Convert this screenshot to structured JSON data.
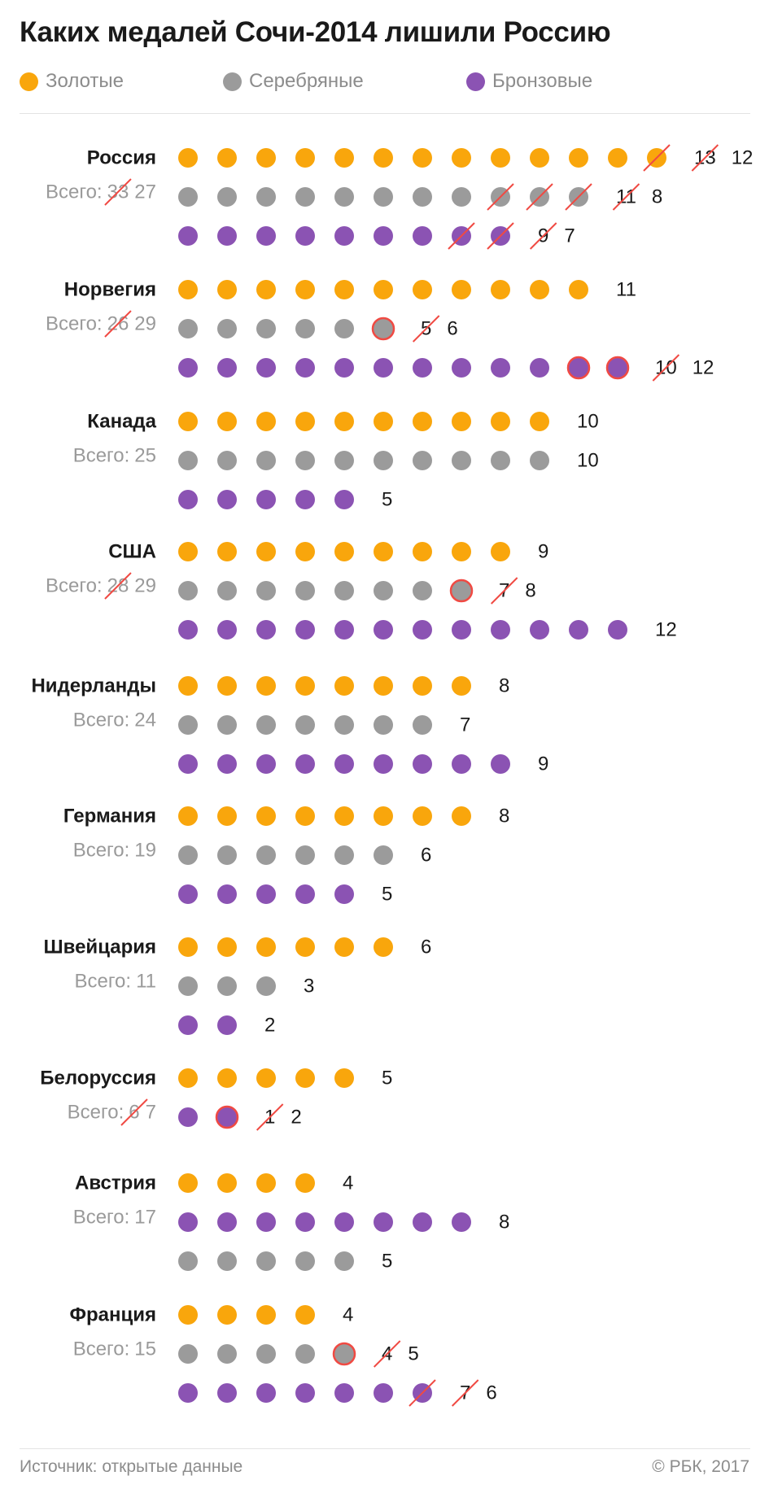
{
  "colors": {
    "gold": "#f9a60c",
    "silver": "#9b9b9b",
    "bronze": "#8b53b3",
    "strike": "#f04a43",
    "ring": "#f04a43"
  },
  "chart_data": {
    "type": "dot-matrix",
    "title": "Каких медалей Сочи-2014 лишили Россию",
    "legend": [
      {
        "key": "gold",
        "label": "Золотые"
      },
      {
        "key": "silver",
        "label": "Серебряные"
      },
      {
        "key": "bronze",
        "label": "Бронзовые"
      }
    ],
    "total_label": "Всего:",
    "countries": [
      {
        "name": "Россия",
        "total_before": 33,
        "total_after": 27,
        "rows": [
          {
            "type": "gold",
            "before": 13,
            "after": 12,
            "added": 0
          },
          {
            "type": "silver",
            "before": 11,
            "after": 8,
            "added": 0
          },
          {
            "type": "bronze",
            "before": 9,
            "after": 7,
            "added": 0
          }
        ]
      },
      {
        "name": "Норвегия",
        "total_before": 26,
        "total_after": 29,
        "rows": [
          {
            "type": "gold",
            "before": 11,
            "after": 11,
            "added": 0
          },
          {
            "type": "silver",
            "before": 5,
            "after": 6,
            "added": 1
          },
          {
            "type": "bronze",
            "before": 10,
            "after": 12,
            "added": 2
          }
        ]
      },
      {
        "name": "Канада",
        "total_before": 25,
        "total_after": 25,
        "rows": [
          {
            "type": "gold",
            "before": 10,
            "after": 10,
            "added": 0
          },
          {
            "type": "silver",
            "before": 10,
            "after": 10,
            "added": 0
          },
          {
            "type": "bronze",
            "before": 5,
            "after": 5,
            "added": 0
          }
        ]
      },
      {
        "name": "США",
        "total_before": 28,
        "total_after": 29,
        "rows": [
          {
            "type": "gold",
            "before": 9,
            "after": 9,
            "added": 0
          },
          {
            "type": "silver",
            "before": 7,
            "after": 8,
            "added": 1
          },
          {
            "type": "bronze",
            "before": 12,
            "after": 12,
            "added": 0
          }
        ]
      },
      {
        "name": "Нидерланды",
        "total_before": 24,
        "total_after": 24,
        "rows": [
          {
            "type": "gold",
            "before": 8,
            "after": 8,
            "added": 0
          },
          {
            "type": "silver",
            "before": 7,
            "after": 7,
            "added": 0
          },
          {
            "type": "bronze",
            "before": 9,
            "after": 9,
            "added": 0
          }
        ]
      },
      {
        "name": "Германия",
        "total_before": 19,
        "total_after": 19,
        "rows": [
          {
            "type": "gold",
            "before": 8,
            "after": 8,
            "added": 0
          },
          {
            "type": "silver",
            "before": 6,
            "after": 6,
            "added": 0
          },
          {
            "type": "bronze",
            "before": 5,
            "after": 5,
            "added": 0
          }
        ]
      },
      {
        "name": "Швейцария",
        "total_before": 11,
        "total_after": 11,
        "rows": [
          {
            "type": "gold",
            "before": 6,
            "after": 6,
            "added": 0
          },
          {
            "type": "silver",
            "before": 3,
            "after": 3,
            "added": 0
          },
          {
            "type": "bronze",
            "before": 2,
            "after": 2,
            "added": 0
          }
        ]
      },
      {
        "name": "Белоруссия",
        "total_before": 6,
        "total_after": 7,
        "rows": [
          {
            "type": "gold",
            "before": 5,
            "after": 5,
            "added": 0
          },
          {
            "type": "bronze",
            "before": 1,
            "after": 2,
            "added": 1
          }
        ]
      },
      {
        "name": "Австрия",
        "total_before": 17,
        "total_after": 17,
        "rows": [
          {
            "type": "gold",
            "before": 4,
            "after": 4,
            "added": 0
          },
          {
            "type": "bronze",
            "before": 8,
            "after": 8,
            "added": 0
          },
          {
            "type": "silver",
            "before": 5,
            "after": 5,
            "added": 0
          }
        ]
      },
      {
        "name": "Франция",
        "total_before": 15,
        "total_after": 15,
        "rows": [
          {
            "type": "gold",
            "before": 4,
            "after": 4,
            "added": 0
          },
          {
            "type": "silver",
            "before": 4,
            "after": 5,
            "added": 1
          },
          {
            "type": "bronze",
            "before": 7,
            "after": 6,
            "added": 0
          }
        ]
      }
    ]
  },
  "footer": {
    "source": "Источник: открытые данные",
    "copyright": "© РБК, 2017"
  }
}
